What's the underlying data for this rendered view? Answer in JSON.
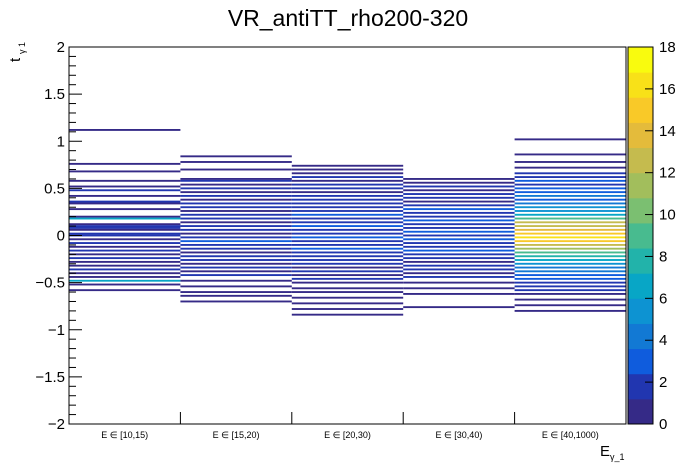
{
  "chart_data": {
    "type": "heatmap",
    "title": "VR_antiTT_rho200-320",
    "xlabel": "E",
    "xlabel_sub": "γ_1",
    "ylabel": "t",
    "ylabel_sub": "γ 1",
    "categories": [
      "E ∈ [10,15)",
      "E ∈ [15,20)",
      "E ∈ [20,30)",
      "E ∈ [30,40)",
      "E ∈ [40,1000)"
    ],
    "ylim": [
      -2,
      2
    ],
    "yticks": [
      -2,
      -1.5,
      -1,
      -0.5,
      0,
      0.5,
      1,
      1.5,
      2
    ],
    "ytick_labels": [
      "−2",
      "−1.5",
      "−1",
      "−0.5",
      "0",
      "0.5",
      "1",
      "1.5",
      "2"
    ],
    "zlim": [
      0,
      18
    ],
    "zticks": [
      0,
      2,
      4,
      6,
      8,
      10,
      12,
      14,
      16,
      18
    ],
    "zticks_labels": [
      "0",
      "2",
      "4",
      "6",
      "8",
      "10",
      "12",
      "14",
      "16",
      "18"
    ],
    "bin_width_y": 0.02,
    "columns": [
      {
        "category": "E ∈ [10,15)",
        "bins": [
          {
            "y": 1.12,
            "v": 1
          },
          {
            "y": 0.76,
            "v": 1
          },
          {
            "y": 0.68,
            "v": 1
          },
          {
            "y": 0.58,
            "v": 1
          },
          {
            "y": 0.52,
            "v": 1
          },
          {
            "y": 0.48,
            "v": 2
          },
          {
            "y": 0.42,
            "v": 1
          },
          {
            "y": 0.36,
            "v": 2
          },
          {
            "y": 0.34,
            "v": 1
          },
          {
            "y": 0.28,
            "v": 1
          },
          {
            "y": 0.2,
            "v": 1
          },
          {
            "y": 0.18,
            "v": 6
          },
          {
            "y": 0.12,
            "v": 1
          },
          {
            "y": 0.1,
            "v": 2
          },
          {
            "y": 0.08,
            "v": 2
          },
          {
            "y": 0.06,
            "v": 1
          },
          {
            "y": 0.02,
            "v": 2
          },
          {
            "y": 0.0,
            "v": 2
          },
          {
            "y": -0.04,
            "v": 1
          },
          {
            "y": -0.08,
            "v": 2
          },
          {
            "y": -0.12,
            "v": 1
          },
          {
            "y": -0.16,
            "v": 2
          },
          {
            "y": -0.2,
            "v": 1
          },
          {
            "y": -0.24,
            "v": 2
          },
          {
            "y": -0.28,
            "v": 1
          },
          {
            "y": -0.32,
            "v": 1
          },
          {
            "y": -0.36,
            "v": 2
          },
          {
            "y": -0.4,
            "v": 1
          },
          {
            "y": -0.44,
            "v": 1
          },
          {
            "y": -0.48,
            "v": 6
          },
          {
            "y": -0.52,
            "v": 1
          },
          {
            "y": -0.58,
            "v": 1
          }
        ]
      },
      {
        "category": "E ∈ [15,20)",
        "bins": [
          {
            "y": 0.84,
            "v": 1
          },
          {
            "y": 0.78,
            "v": 1
          },
          {
            "y": 0.7,
            "v": 1
          },
          {
            "y": 0.6,
            "v": 1
          },
          {
            "y": 0.58,
            "v": 2
          },
          {
            "y": 0.54,
            "v": 1
          },
          {
            "y": 0.5,
            "v": 2
          },
          {
            "y": 0.46,
            "v": 1
          },
          {
            "y": 0.42,
            "v": 2
          },
          {
            "y": 0.38,
            "v": 1
          },
          {
            "y": 0.34,
            "v": 2
          },
          {
            "y": 0.3,
            "v": 2
          },
          {
            "y": 0.26,
            "v": 1
          },
          {
            "y": 0.22,
            "v": 2
          },
          {
            "y": 0.18,
            "v": 2
          },
          {
            "y": 0.14,
            "v": 1
          },
          {
            "y": 0.1,
            "v": 2
          },
          {
            "y": 0.06,
            "v": 2
          },
          {
            "y": 0.02,
            "v": 1
          },
          {
            "y": -0.02,
            "v": 2
          },
          {
            "y": -0.06,
            "v": 3
          },
          {
            "y": -0.1,
            "v": 2
          },
          {
            "y": -0.14,
            "v": 2
          },
          {
            "y": -0.18,
            "v": 1
          },
          {
            "y": -0.22,
            "v": 2
          },
          {
            "y": -0.26,
            "v": 2
          },
          {
            "y": -0.3,
            "v": 1
          },
          {
            "y": -0.34,
            "v": 2
          },
          {
            "y": -0.38,
            "v": 1
          },
          {
            "y": -0.42,
            "v": 2
          },
          {
            "y": -0.48,
            "v": 1
          },
          {
            "y": -0.54,
            "v": 1
          },
          {
            "y": -0.6,
            "v": 1
          },
          {
            "y": -0.64,
            "v": 1
          },
          {
            "y": -0.7,
            "v": 1
          }
        ]
      },
      {
        "category": "E ∈ [20,30)",
        "bins": [
          {
            "y": 0.74,
            "v": 1
          },
          {
            "y": 0.7,
            "v": 1
          },
          {
            "y": 0.66,
            "v": 1
          },
          {
            "y": 0.62,
            "v": 2
          },
          {
            "y": 0.58,
            "v": 1
          },
          {
            "y": 0.54,
            "v": 2
          },
          {
            "y": 0.5,
            "v": 2
          },
          {
            "y": 0.46,
            "v": 1
          },
          {
            "y": 0.42,
            "v": 2
          },
          {
            "y": 0.38,
            "v": 2
          },
          {
            "y": 0.34,
            "v": 2
          },
          {
            "y": 0.3,
            "v": 2
          },
          {
            "y": 0.26,
            "v": 2
          },
          {
            "y": 0.22,
            "v": 3
          },
          {
            "y": 0.18,
            "v": 2
          },
          {
            "y": 0.14,
            "v": 2
          },
          {
            "y": 0.1,
            "v": 3
          },
          {
            "y": 0.06,
            "v": 2
          },
          {
            "y": 0.02,
            "v": 2
          },
          {
            "y": -0.02,
            "v": 3
          },
          {
            "y": -0.06,
            "v": 2
          },
          {
            "y": -0.1,
            "v": 2
          },
          {
            "y": -0.14,
            "v": 3
          },
          {
            "y": -0.18,
            "v": 2
          },
          {
            "y": -0.22,
            "v": 2
          },
          {
            "y": -0.26,
            "v": 2
          },
          {
            "y": -0.3,
            "v": 2
          },
          {
            "y": -0.34,
            "v": 1
          },
          {
            "y": -0.38,
            "v": 2
          },
          {
            "y": -0.42,
            "v": 1
          },
          {
            "y": -0.46,
            "v": 2
          },
          {
            "y": -0.5,
            "v": 1
          },
          {
            "y": -0.56,
            "v": 1
          },
          {
            "y": -0.6,
            "v": 1
          },
          {
            "y": -0.66,
            "v": 1
          },
          {
            "y": -0.72,
            "v": 1
          },
          {
            "y": -0.78,
            "v": 1
          },
          {
            "y": -0.84,
            "v": 1
          }
        ]
      },
      {
        "category": "E ∈ [30,40)",
        "bins": [
          {
            "y": 0.6,
            "v": 1
          },
          {
            "y": 0.56,
            "v": 1
          },
          {
            "y": 0.52,
            "v": 2
          },
          {
            "y": 0.48,
            "v": 1
          },
          {
            "y": 0.44,
            "v": 2
          },
          {
            "y": 0.4,
            "v": 2
          },
          {
            "y": 0.36,
            "v": 1
          },
          {
            "y": 0.32,
            "v": 2
          },
          {
            "y": 0.28,
            "v": 3
          },
          {
            "y": 0.24,
            "v": 2
          },
          {
            "y": 0.2,
            "v": 2
          },
          {
            "y": 0.16,
            "v": 3
          },
          {
            "y": 0.12,
            "v": 2
          },
          {
            "y": 0.08,
            "v": 2
          },
          {
            "y": 0.04,
            "v": 3
          },
          {
            "y": 0.0,
            "v": 2
          },
          {
            "y": -0.04,
            "v": 3
          },
          {
            "y": -0.08,
            "v": 2
          },
          {
            "y": -0.12,
            "v": 2
          },
          {
            "y": -0.16,
            "v": 3
          },
          {
            "y": -0.2,
            "v": 2
          },
          {
            "y": -0.24,
            "v": 2
          },
          {
            "y": -0.28,
            "v": 1
          },
          {
            "y": -0.32,
            "v": 2
          },
          {
            "y": -0.36,
            "v": 2
          },
          {
            "y": -0.4,
            "v": 1
          },
          {
            "y": -0.44,
            "v": 2
          },
          {
            "y": -0.5,
            "v": 1
          },
          {
            "y": -0.56,
            "v": 1
          },
          {
            "y": -0.62,
            "v": 1
          },
          {
            "y": -0.76,
            "v": 1
          }
        ]
      },
      {
        "category": "E ∈ [40,1000)",
        "bins": [
          {
            "y": 1.02,
            "v": 1
          },
          {
            "y": 0.86,
            "v": 1
          },
          {
            "y": 0.78,
            "v": 1
          },
          {
            "y": 0.72,
            "v": 1
          },
          {
            "y": 0.66,
            "v": 2
          },
          {
            "y": 0.62,
            "v": 2
          },
          {
            "y": 0.58,
            "v": 3
          },
          {
            "y": 0.54,
            "v": 2
          },
          {
            "y": 0.5,
            "v": 3
          },
          {
            "y": 0.46,
            "v": 3
          },
          {
            "y": 0.42,
            "v": 4
          },
          {
            "y": 0.38,
            "v": 3
          },
          {
            "y": 0.34,
            "v": 4
          },
          {
            "y": 0.3,
            "v": 5
          },
          {
            "y": 0.26,
            "v": 5
          },
          {
            "y": 0.22,
            "v": 7
          },
          {
            "y": 0.18,
            "v": 9
          },
          {
            "y": 0.14,
            "v": 12
          },
          {
            "y": 0.1,
            "v": 13
          },
          {
            "y": 0.06,
            "v": 14
          },
          {
            "y": 0.02,
            "v": 15
          },
          {
            "y": -0.02,
            "v": 16
          },
          {
            "y": -0.06,
            "v": 15
          },
          {
            "y": -0.1,
            "v": 13
          },
          {
            "y": -0.14,
            "v": 11
          },
          {
            "y": -0.18,
            "v": 9
          },
          {
            "y": -0.22,
            "v": 8
          },
          {
            "y": -0.26,
            "v": 6
          },
          {
            "y": -0.3,
            "v": 5
          },
          {
            "y": -0.34,
            "v": 4
          },
          {
            "y": -0.38,
            "v": 4
          },
          {
            "y": -0.42,
            "v": 3
          },
          {
            "y": -0.46,
            "v": 3
          },
          {
            "y": -0.5,
            "v": 2
          },
          {
            "y": -0.54,
            "v": 2
          },
          {
            "y": -0.58,
            "v": 2
          },
          {
            "y": -0.62,
            "v": 1
          },
          {
            "y": -0.68,
            "v": 1
          },
          {
            "y": -0.74,
            "v": 1
          },
          {
            "y": -0.8,
            "v": 1
          }
        ]
      }
    ]
  }
}
